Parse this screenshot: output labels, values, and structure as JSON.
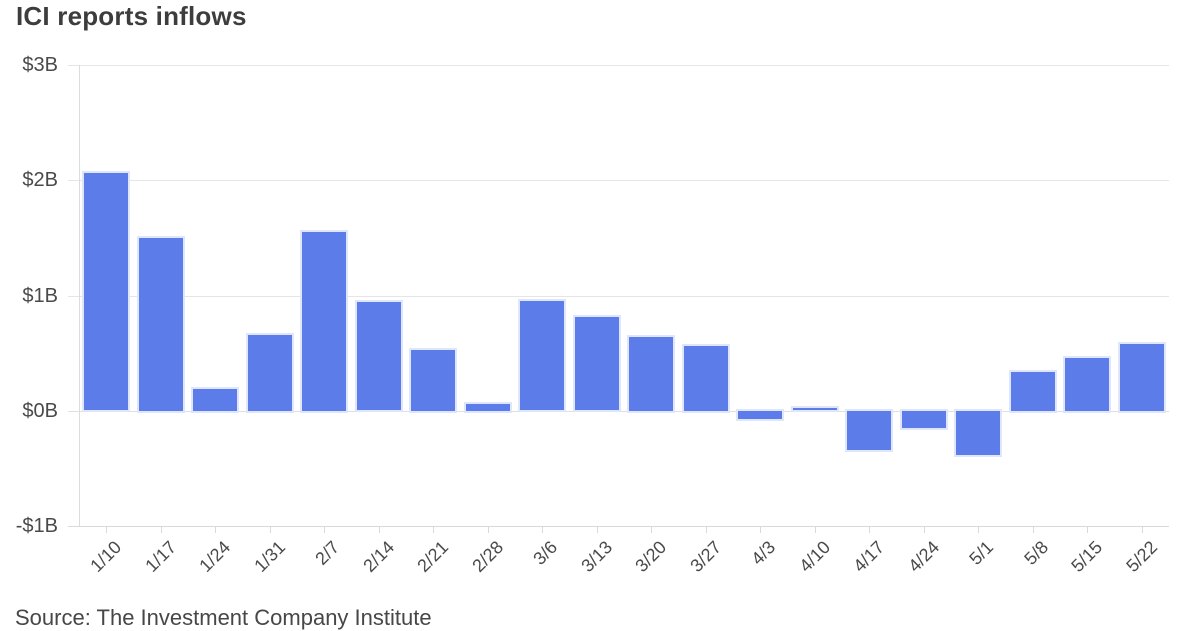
{
  "header": {
    "title": "ICI reports inflows"
  },
  "footer": {
    "source": "Source: The Investment Company Institute"
  },
  "chart_data": {
    "type": "bar",
    "title": "ICI reports inflows",
    "categories": [
      "1/10",
      "1/17",
      "1/24",
      "1/31",
      "2/7",
      "2/14",
      "2/21",
      "2/28",
      "3/6",
      "3/13",
      "3/20",
      "3/27",
      "4/3",
      "4/10",
      "4/17",
      "4/24",
      "5/1",
      "5/8",
      "5/15",
      "5/22"
    ],
    "values": [
      2.06,
      1.5,
      0.19,
      0.66,
      1.55,
      0.94,
      0.53,
      0.06,
      0.95,
      0.81,
      0.64,
      0.56,
      -0.07,
      0.02,
      -0.34,
      -0.15,
      -0.38,
      0.34,
      0.46,
      0.58
    ],
    "values_unit": "$B",
    "xlabel": "",
    "ylabel": "",
    "ylim": [
      -1,
      3
    ],
    "ytick_values": [
      3,
      2,
      1,
      0,
      -1
    ],
    "ytick_labels": [
      "$3B",
      "$2B",
      "$1B",
      "$0B",
      "-$1B"
    ],
    "grid": true,
    "legend": false,
    "bar_color": "#5c7ce9",
    "bar_edge_color": "#dfe6fb",
    "source": "Source: The Investment Company Institute"
  }
}
